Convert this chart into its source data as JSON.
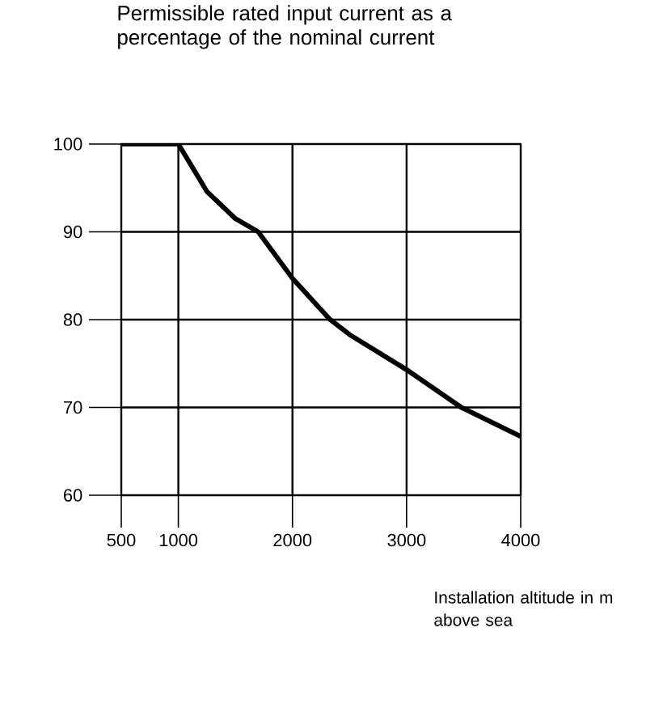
{
  "chart_data": {
    "type": "line",
    "ylabel": "Permissible rated input current as a percentage of the nominal current",
    "xlabel": "Installation altitude in m above sea",
    "x": [
      500,
      1000,
      1250,
      1500,
      1700,
      2000,
      2330,
      2500,
      3000,
      3480,
      4000
    ],
    "series": [
      {
        "color": "#000000",
        "values": [
          100,
          100,
          94.6,
          91.5,
          90,
          84.7,
          80,
          78.3,
          74.3,
          70,
          66.7
        ]
      }
    ],
    "xlim": [
      500,
      4000
    ],
    "ylim": [
      60,
      100
    ],
    "xticks": [
      500,
      1000,
      2000,
      3000,
      4000
    ],
    "yticks": [
      60,
      70,
      80,
      90,
      100
    ],
    "grid": true,
    "marker": "none",
    "line_style": "solid"
  }
}
